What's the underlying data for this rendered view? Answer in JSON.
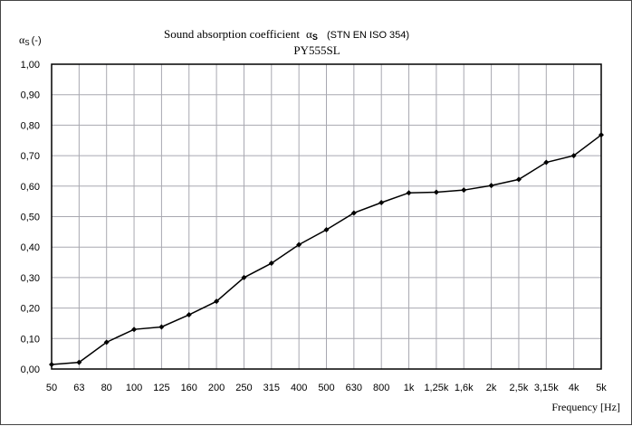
{
  "chart_data": {
    "type": "line",
    "title": "Sound absorption coefficient",
    "title_symbol": "α",
    "title_symbol_sub": "S",
    "title_standard": "(STN EN ISO 354)",
    "subtitle": "PY555SL",
    "ylabel_symbol": "α",
    "ylabel_sub": "S",
    "ylabel_unit": "(-)",
    "xlabel": "Frequency [Hz]",
    "ylim": [
      0,
      1
    ],
    "yticks": [
      "0,00",
      "0,10",
      "0,20",
      "0,30",
      "0,40",
      "0,50",
      "0,60",
      "0,70",
      "0,80",
      "0,90",
      "1,00"
    ],
    "categories": [
      "50",
      "63",
      "80",
      "100",
      "125",
      "160",
      "200",
      "250",
      "315",
      "400",
      "500",
      "630",
      "800",
      "1k",
      "1,25k",
      "1,6k",
      "2k",
      "2,5k",
      "3,15k",
      "4k",
      "5k"
    ],
    "values": [
      0.015,
      0.022,
      0.088,
      0.13,
      0.138,
      0.178,
      0.222,
      0.3,
      0.347,
      0.408,
      0.457,
      0.512,
      0.546,
      0.578,
      0.58,
      0.587,
      0.602,
      0.622,
      0.678,
      0.7,
      0.768
    ],
    "grid": true,
    "line_color": "#000000",
    "grid_color": "#a8a8b0"
  }
}
